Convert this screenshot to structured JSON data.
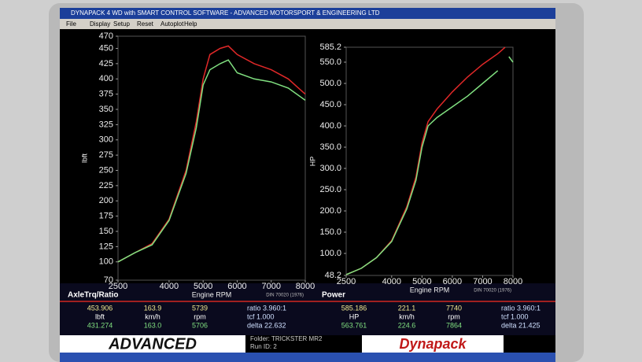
{
  "window": {
    "title": "DYNAPACK 4 WD with SMART CONTROL SOFTWARE - ADVANCED MOTORSPORT & ENGINEERING LTD",
    "menu": [
      "File",
      "Display",
      "Setup",
      "Reset",
      "Autoplot",
      "Help"
    ]
  },
  "chart_data": [
    {
      "type": "line",
      "ylabel": "lbft",
      "xlabel": "Engine RPM",
      "note": "DIN 70020 (1976)",
      "xlim": [
        2500,
        8000
      ],
      "xticks": [
        2500,
        4000,
        5000,
        6000,
        7000,
        8000
      ],
      "ylim": [
        70,
        470
      ],
      "yticks": [
        70,
        100,
        125,
        150,
        175,
        200,
        225,
        250,
        275,
        300,
        325,
        350,
        375,
        400,
        425,
        450,
        470
      ],
      "x": [
        2500,
        3000,
        3500,
        4000,
        4500,
        4800,
        5000,
        5200,
        5500,
        5739,
        6000,
        6500,
        7000,
        7500,
        8000
      ],
      "series": [
        {
          "name": "Run 1",
          "color": "#e02828",
          "values": [
            100,
            115,
            130,
            170,
            250,
            330,
            400,
            440,
            450,
            454,
            440,
            425,
            415,
            400,
            375
          ]
        },
        {
          "name": "Run 2",
          "color": "#80e080",
          "values": [
            100,
            115,
            128,
            168,
            245,
            320,
            390,
            415,
            425,
            431,
            410,
            400,
            395,
            385,
            365
          ]
        }
      ]
    },
    {
      "type": "line",
      "ylabel": "HP",
      "xlabel": "Engine RPM",
      "note": "DIN 70020 (1976)",
      "xlim": [
        2500,
        8000
      ],
      "xticks": [
        2500,
        4000,
        5000,
        6000,
        7000,
        8000
      ],
      "ylim": [
        48.2,
        585.2
      ],
      "yticks": [
        48.2,
        {
          "value": 100,
          "label": "100.0"
        },
        {
          "value": 150,
          "label": "150.0"
        },
        {
          "value": 200,
          "label": "200.0"
        },
        {
          "value": 250,
          "label": "250.0"
        },
        {
          "value": 300,
          "label": "300.0"
        },
        {
          "value": 350,
          "label": "350.0"
        },
        {
          "value": 400,
          "label": "400.0"
        },
        {
          "value": 450,
          "label": "450.0"
        },
        {
          "value": 500,
          "label": "500.0"
        },
        {
          "value": 550,
          "label": "550.0"
        },
        585.2
      ],
      "x": [
        2500,
        3000,
        3500,
        4000,
        4500,
        4800,
        5000,
        5200,
        5500,
        6000,
        6500,
        7000,
        7500,
        7740,
        7864,
        8000
      ],
      "series": [
        {
          "name": "Run 1",
          "color": "#e02828",
          "values": [
            50,
            65,
            90,
            130,
            210,
            280,
            360,
            410,
            440,
            480,
            515,
            545,
            570,
            585,
            null,
            565
          ]
        },
        {
          "name": "Run 2",
          "color": "#80e080",
          "values": [
            50,
            65,
            90,
            128,
            205,
            272,
            350,
            400,
            420,
            445,
            470,
            500,
            530,
            null,
            563,
            550
          ]
        }
      ]
    }
  ],
  "readouts": [
    {
      "title": "AxleTrq/Ratio",
      "rows": [
        [
          "453.906",
          "163.9",
          "5739",
          "ratio 3.960:1"
        ],
        [
          "lbft",
          "km/h",
          "rpm",
          "tcf 1.000"
        ],
        [
          "431.274",
          "163.0",
          "5706",
          "delta 22.632"
        ]
      ]
    },
    {
      "title": "Power",
      "rows": [
        [
          "585.186",
          "221.1",
          "7740",
          "ratio 3.960:1"
        ],
        [
          "HP",
          "km/h",
          "rpm",
          "tcf 1.000"
        ],
        [
          "563.761",
          "224.6",
          "7864",
          "delta 21.425"
        ]
      ]
    }
  ],
  "footer": {
    "logo": "ADVANCED",
    "folder": "Folder: TRICKSTER MR2",
    "run": "Run ID: 2",
    "brand": "Dynapack"
  }
}
